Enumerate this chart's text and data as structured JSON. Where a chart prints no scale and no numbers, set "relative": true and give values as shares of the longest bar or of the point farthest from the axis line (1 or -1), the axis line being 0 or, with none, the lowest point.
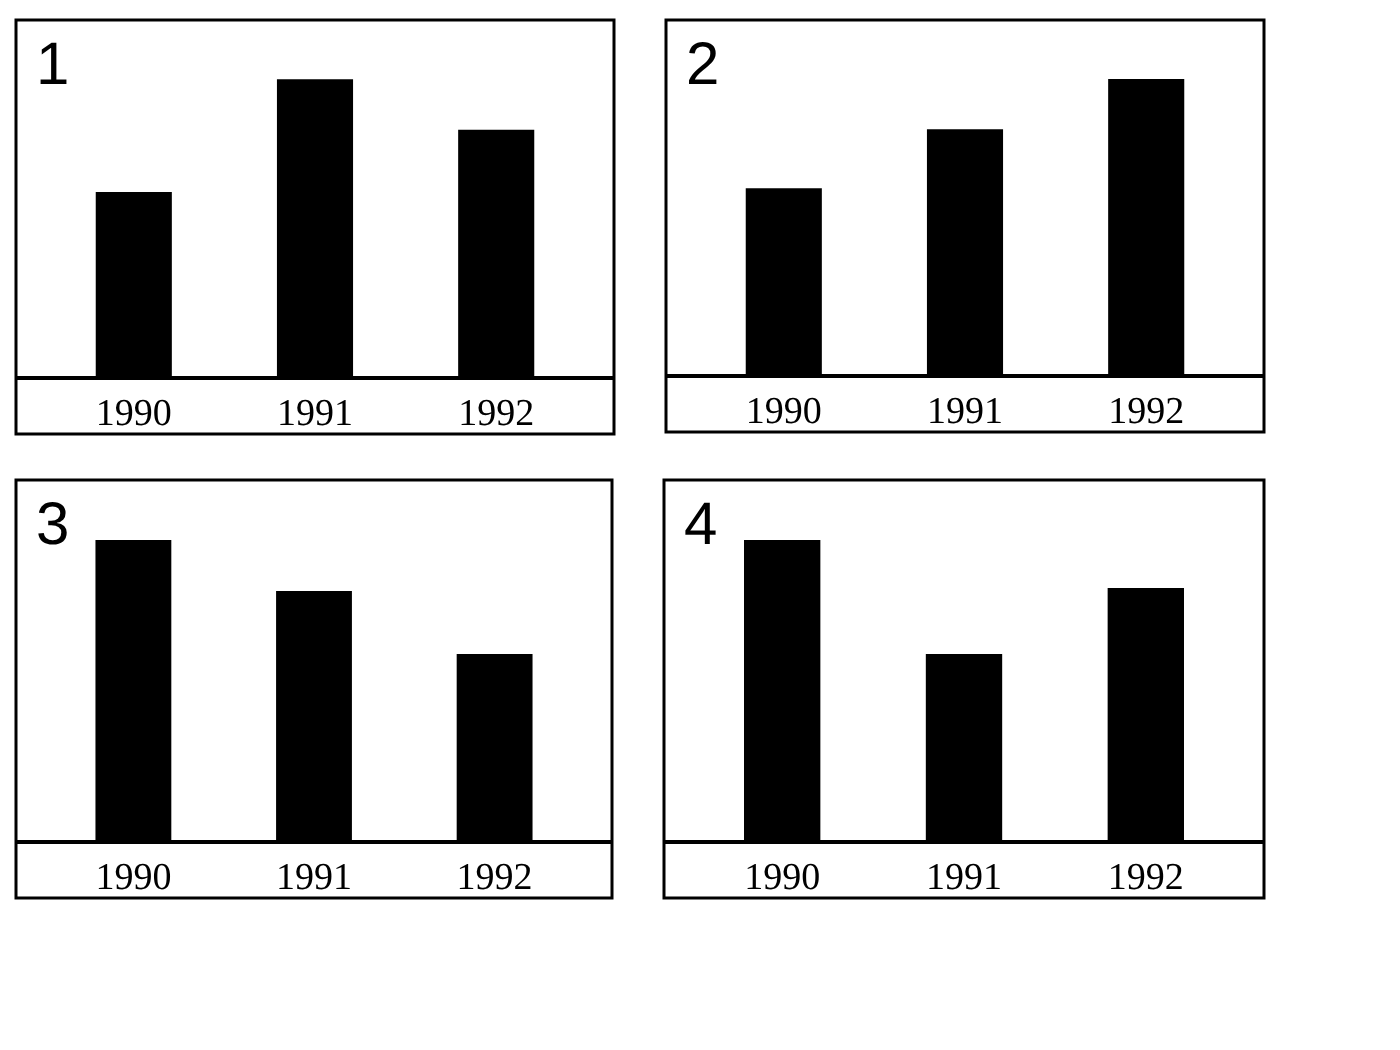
{
  "chart_data": [
    {
      "type": "bar",
      "title": "1",
      "relative": true,
      "categories": [
        "1990",
        "1991",
        "1992"
      ],
      "values": [
        0.62,
        1,
        0.83
      ],
      "color": "#000000"
    },
    {
      "type": "bar",
      "title": "2",
      "relative": true,
      "categories": [
        "1990",
        "1991",
        "1992"
      ],
      "values": [
        0.63,
        0.83,
        1
      ],
      "color": "#000000"
    },
    {
      "type": "bar",
      "title": "3",
      "relative": true,
      "categories": [
        "1990",
        "1991",
        "1992"
      ],
      "values": [
        1,
        0.83,
        0.62
      ],
      "color": "#000000"
    },
    {
      "type": "bar",
      "title": "4",
      "relative": true,
      "categories": [
        "1990",
        "1991",
        "1992"
      ],
      "values": [
        1,
        0.62,
        0.84
      ],
      "color": "#000000"
    }
  ]
}
